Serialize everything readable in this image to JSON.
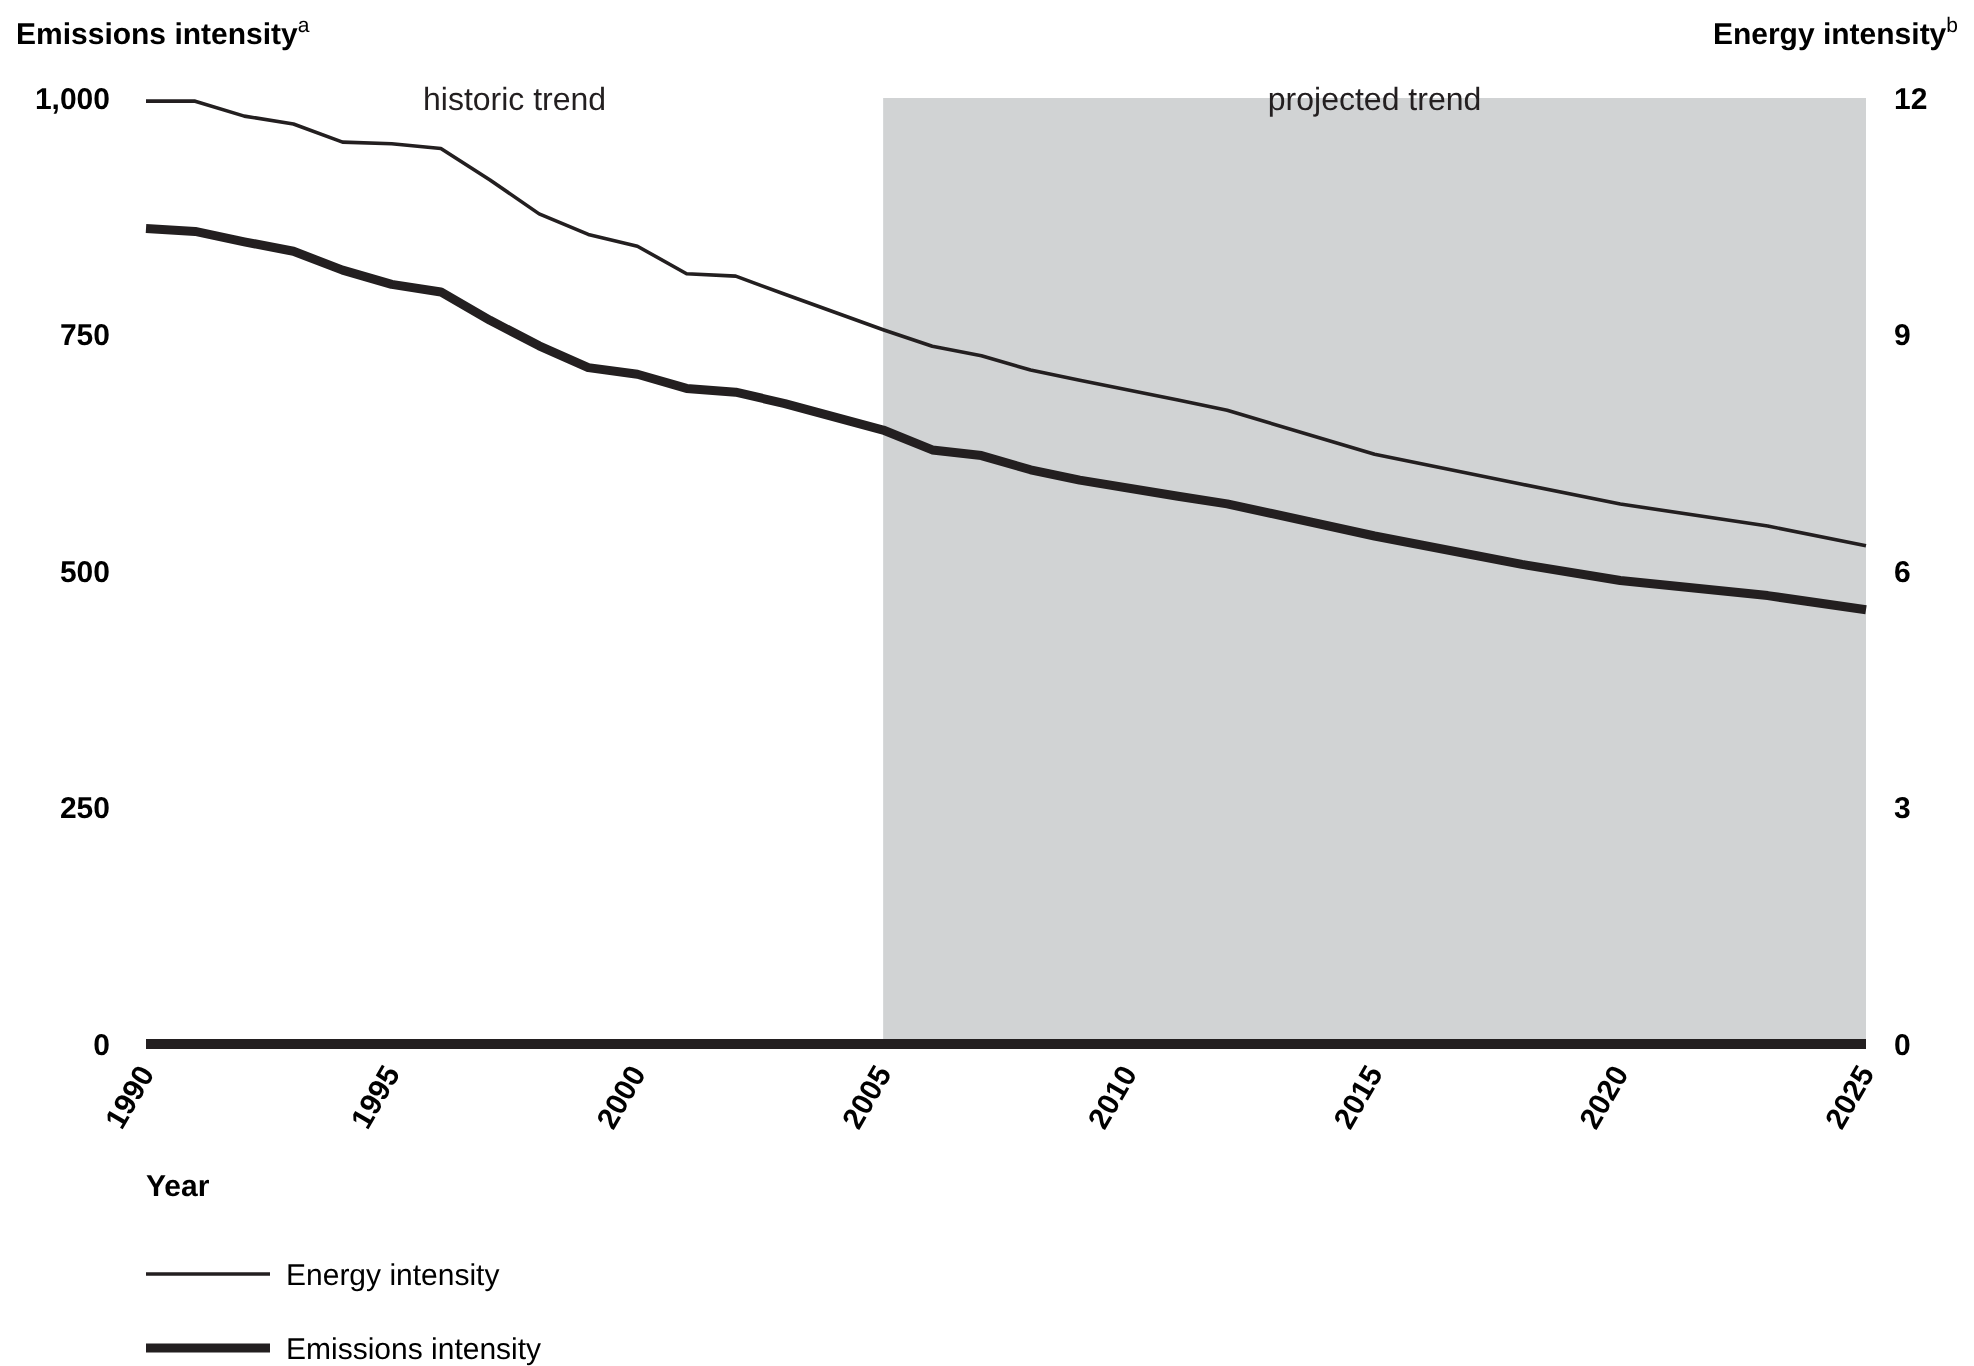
{
  "chart_data": {
    "type": "line",
    "ylabel": "Emissions intensity$^{a}$",
    "y2label": "Energy intensity$^{b}$",
    "xlabel": "Year",
    "xlim": [
      1990,
      2025
    ],
    "xticks": [
      1990,
      1995,
      2000,
      2005,
      2010,
      2015,
      2020,
      2025
    ],
    "ylim": [
      0,
      1000
    ],
    "yticks": [
      0,
      250,
      500,
      750,
      {
        "value": 1000,
        "label": "1,000"
      }
    ],
    "y2lim": [
      0,
      12
    ],
    "y2ticks": [
      0,
      3,
      6,
      9,
      12
    ],
    "annotations": [
      "historic trend"
    ],
    "bands": [
      {
        "axis": "x",
        "from": 2005,
        "to": 2025,
        "label": "projected trend",
        "color": "#d1d3d4"
      }
    ],
    "series": [
      {
        "name": "Energy intensity",
        "color": "#231f20",
        "axis": "y2",
        "x": [
          1990,
          1991,
          1992,
          1993,
          1994,
          1995,
          1996,
          1997,
          1998,
          1999,
          2000,
          2001,
          2002,
          2003,
          2005,
          2006,
          2007,
          2008,
          2009,
          2011,
          2012,
          2015,
          2018,
          2020,
          2023,
          2025
        ],
        "values": [
          11.96,
          11.96,
          11.77,
          11.67,
          11.44,
          11.42,
          11.36,
          10.96,
          10.53,
          10.27,
          10.12,
          9.77,
          9.74,
          9.51,
          9.06,
          8.85,
          8.73,
          8.55,
          8.42,
          8.17,
          8.04,
          7.48,
          7.1,
          6.85,
          6.57,
          6.32
        ]
      },
      {
        "name": "Emissions intensity",
        "color": "#231f20",
        "x": [
          1990,
          1991,
          1992,
          1993,
          1994,
          1995,
          1996,
          1997,
          1998,
          1999,
          2000,
          2001,
          2002,
          2003,
          2005,
          2006,
          2007,
          2008,
          2009,
          2011,
          2012,
          2015,
          2018,
          2020,
          2023,
          2025
        ],
        "values": [
          862,
          859,
          848,
          838,
          818,
          803,
          795,
          765,
          738,
          715,
          708,
          693,
          689,
          677,
          649,
          628,
          622,
          607,
          596,
          579,
          571,
          537,
          507,
          490,
          474,
          459
        ]
      }
    ],
    "legend": "bottom",
    "grid": false,
    "line_style": "solid"
  }
}
